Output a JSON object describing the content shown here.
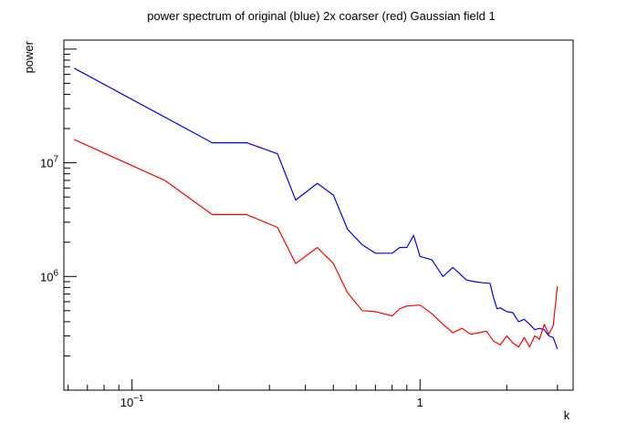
{
  "chart_data": {
    "type": "line",
    "title": "power spectrum of original (blue) 2x coarser (red) Gaussian field 1",
    "xlabel": "k",
    "ylabel": "power",
    "xscale": "log",
    "yscale": "log",
    "xlim": [
      0.058,
      3.4
    ],
    "ylim": [
      100000,
      120000000
    ],
    "x_ticks": [
      {
        "value": 0.1,
        "mantissa": "10",
        "exponent": "−1"
      },
      {
        "value": 1,
        "mantissa": "1",
        "exponent": ""
      }
    ],
    "y_ticks": [
      {
        "value": 1000000,
        "mantissa": "10",
        "exponent": "6"
      },
      {
        "value": 10000000,
        "mantissa": "10",
        "exponent": "7"
      }
    ],
    "grid": false,
    "legend": "none",
    "series": [
      {
        "color": "#0000ff",
        "x": [
          0.063,
          0.19,
          0.25,
          0.32,
          0.37,
          0.44,
          0.5,
          0.56,
          0.63,
          0.7,
          0.8,
          0.85,
          0.9,
          0.95,
          1.0,
          1.1,
          1.2,
          1.3,
          1.35,
          1.45,
          1.55,
          1.65,
          1.75,
          1.8,
          1.85,
          1.9,
          1.95,
          2.0,
          2.1,
          2.2,
          2.3,
          2.4,
          2.5,
          2.6,
          2.7,
          2.8,
          2.9,
          3.0
        ],
        "y": [
          68000000,
          15000000,
          15000000,
          12000000,
          4700000,
          6600000,
          5200000,
          2600000,
          1900000,
          1600000,
          1600000,
          1800000,
          1800000,
          2300000,
          1500000,
          1400000,
          1000000,
          1200000,
          1100000,
          930000,
          900000,
          880000,
          870000,
          650000,
          520000,
          530000,
          510000,
          490000,
          480000,
          400000,
          420000,
          380000,
          340000,
          350000,
          340000,
          300000,
          290000,
          230000
        ]
      },
      {
        "color": "#ff0000",
        "x": [
          0.063,
          0.13,
          0.19,
          0.25,
          0.32,
          0.37,
          0.44,
          0.5,
          0.56,
          0.63,
          0.7,
          0.8,
          0.85,
          0.9,
          1.0,
          1.1,
          1.2,
          1.3,
          1.4,
          1.5,
          1.6,
          1.7,
          1.8,
          1.9,
          2.0,
          2.1,
          2.2,
          2.3,
          2.4,
          2.5,
          2.6,
          2.7,
          2.8,
          2.9,
          3.0
        ],
        "y": [
          16000000,
          7000000,
          3500000,
          3500000,
          2700000,
          1300000,
          1800000,
          1300000,
          720000,
          500000,
          490000,
          450000,
          520000,
          550000,
          560000,
          470000,
          380000,
          320000,
          350000,
          310000,
          320000,
          330000,
          270000,
          250000,
          300000,
          260000,
          240000,
          290000,
          240000,
          300000,
          280000,
          380000,
          310000,
          370000,
          820000
        ]
      }
    ]
  }
}
